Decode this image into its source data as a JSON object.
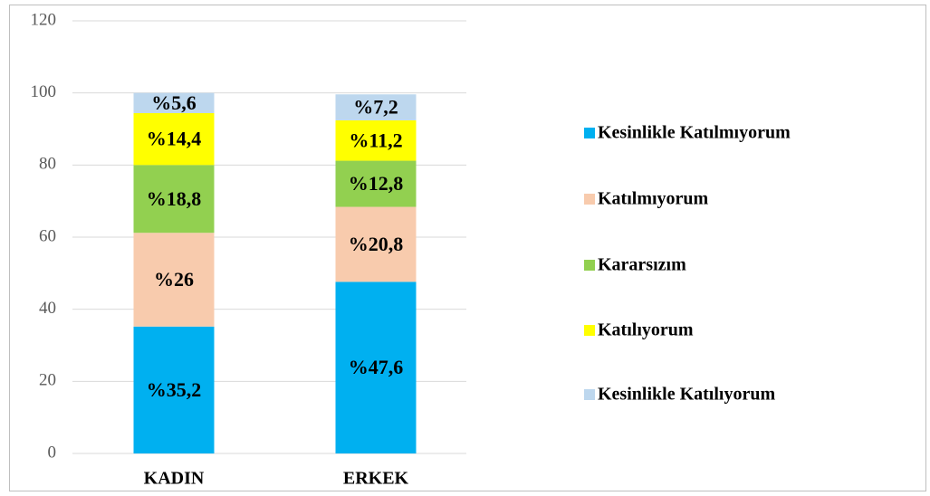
{
  "chart_data": {
    "type": "stacked_bar",
    "categories": [
      "KADIN",
      "ERKEK"
    ],
    "series": [
      {
        "name": "Kesinlikle Katılmıyorum",
        "color": "#00b0f0",
        "values": [
          35.2,
          47.6
        ],
        "value_labels": [
          "%35,2",
          "%47,6"
        ]
      },
      {
        "name": "Katılmıyorum",
        "color": "#f8cbad",
        "values": [
          26,
          20.8
        ],
        "value_labels": [
          "%26",
          "%20,8"
        ]
      },
      {
        "name": "Kararsızım",
        "color": "#92d050",
        "values": [
          18.8,
          12.8
        ],
        "value_labels": [
          "%18,8",
          "%12,8"
        ]
      },
      {
        "name": "Katılıyorum",
        "color": "#ffff00",
        "values": [
          14.4,
          11.2
        ],
        "value_labels": [
          "%14,4",
          "%11,2"
        ]
      },
      {
        "name": "Kesinlikle Katılıyorum",
        "color": "#bdd7ee",
        "values": [
          5.6,
          7.2
        ],
        "value_labels": [
          "%5,6",
          "%7,2"
        ]
      }
    ],
    "ylim": [
      0,
      120
    ],
    "yticks": [
      0,
      20,
      40,
      60,
      80,
      100,
      120
    ],
    "grid": true,
    "legend": "right"
  }
}
